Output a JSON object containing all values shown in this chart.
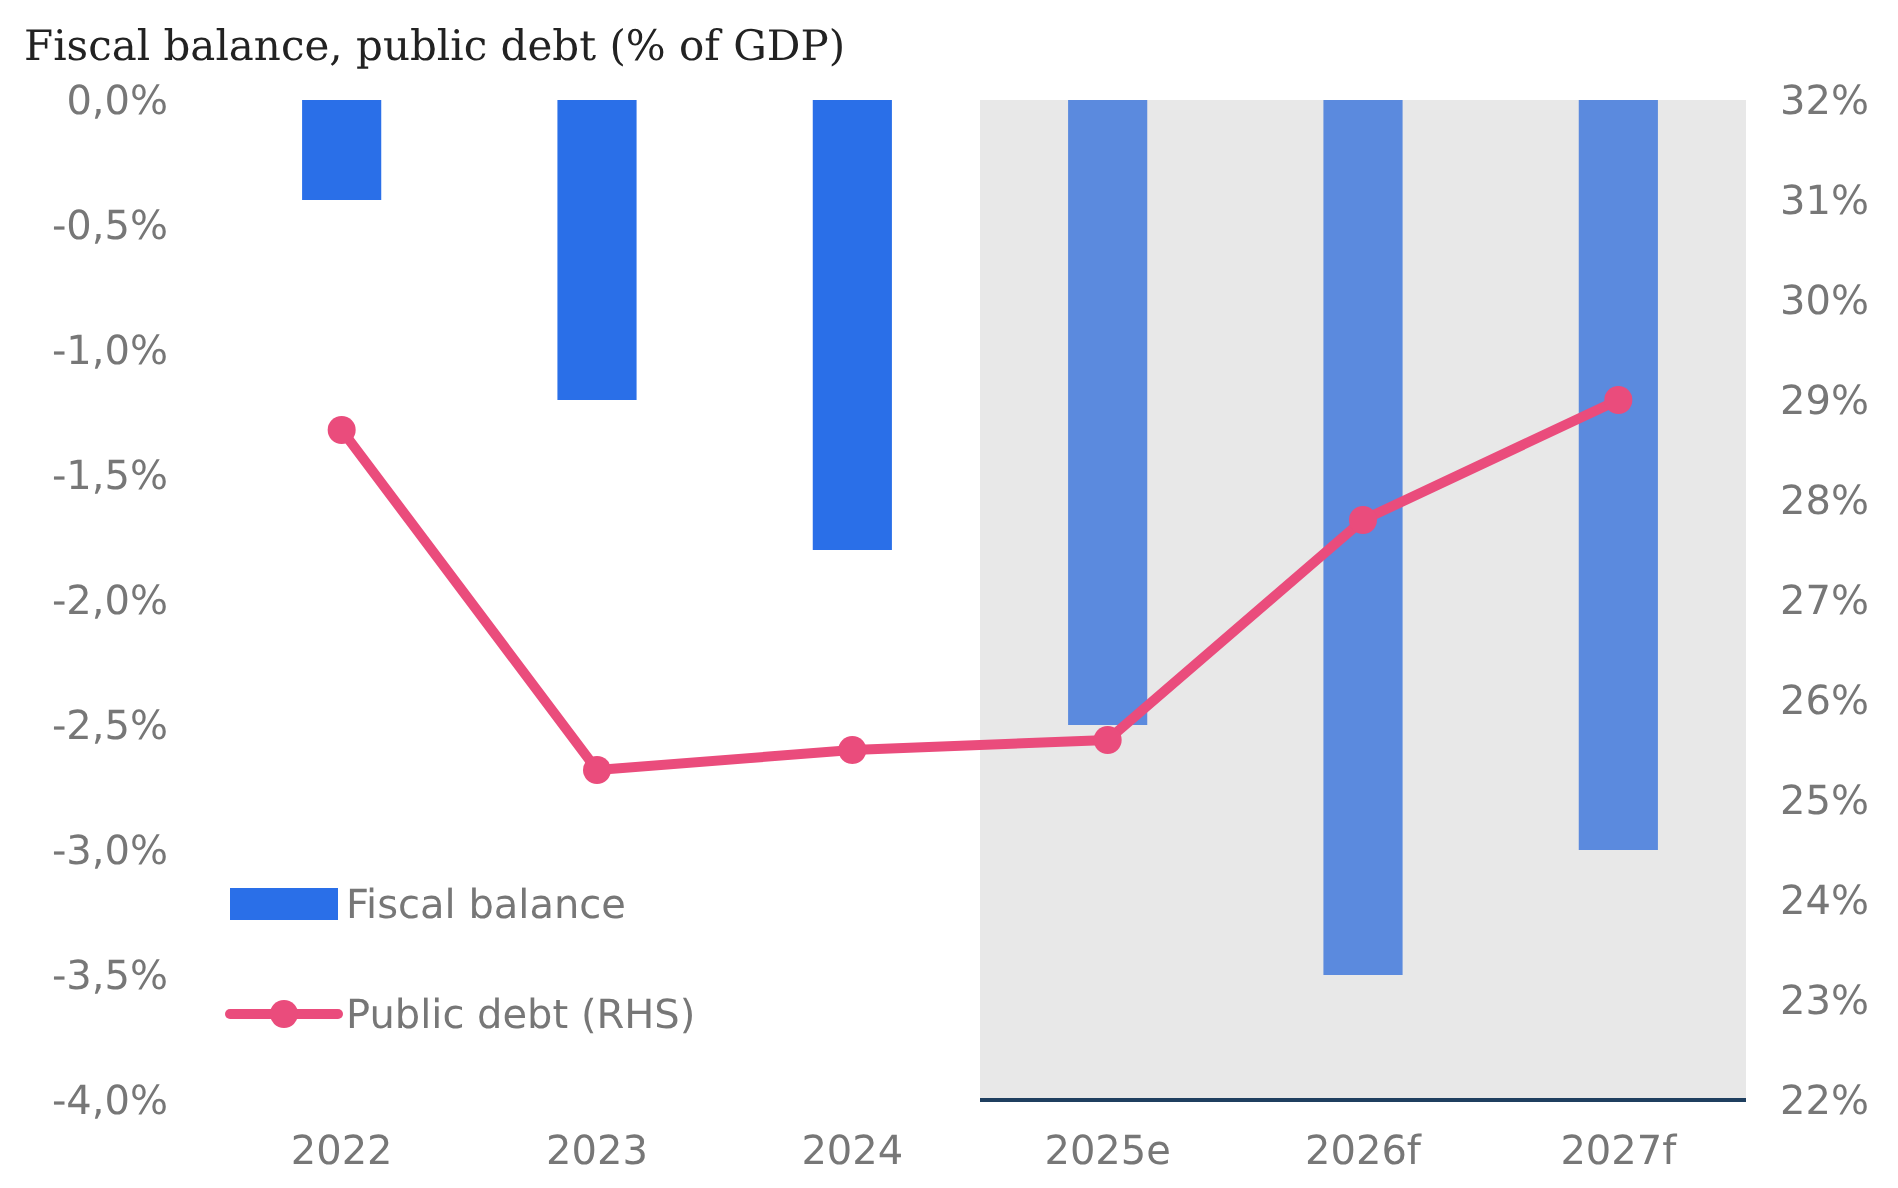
{
  "chart_data": {
    "type": "bar",
    "title": "Fiscal balance, public debt (% of GDP)",
    "categories": [
      "2022",
      "2023",
      "2024",
      "2025e",
      "2026f",
      "2027f"
    ],
    "series": [
      {
        "name": "Fiscal balance",
        "color": "#2a6fe8",
        "colors": [
          "#2a6fe8",
          "#2a6fe8",
          "#2a6fe8",
          "#5b8ade",
          "#5b8ade",
          "#5b8ade"
        ],
        "values": [
          -0.4,
          -1.2,
          -1.8,
          -2.5,
          -3.5,
          -3.0
        ]
      },
      {
        "name": "Public debt (RHS)",
        "type": "line",
        "axis": "y2",
        "color": "#ea4c7c",
        "values": [
          28.7,
          25.3,
          25.5,
          25.6,
          27.8,
          29.0
        ]
      }
    ],
    "ylim": [
      -4,
      0
    ],
    "yticks": [
      {
        "value": 0,
        "label": "0,0%"
      },
      {
        "value": -0.5,
        "label": "-0,5%"
      },
      {
        "value": -1,
        "label": "-1,0%"
      },
      {
        "value": -1.5,
        "label": "-1,5%"
      },
      {
        "value": -2,
        "label": "-2,0%"
      },
      {
        "value": -2.5,
        "label": "-2,5%"
      },
      {
        "value": -3,
        "label": "-3,0%"
      },
      {
        "value": -3.5,
        "label": "-3,5%"
      },
      {
        "value": -4,
        "label": "-4,0%"
      }
    ],
    "y2lim": [
      22,
      32
    ],
    "y2ticks": [
      {
        "value": 22,
        "label": "22%"
      },
      {
        "value": 23,
        "label": "23%"
      },
      {
        "value": 24,
        "label": "24%"
      },
      {
        "value": 25,
        "label": "25%"
      },
      {
        "value": 26,
        "label": "26%"
      },
      {
        "value": 27,
        "label": "27%"
      },
      {
        "value": 28,
        "label": "28%"
      },
      {
        "value": 29,
        "label": "29%"
      },
      {
        "value": 30,
        "label": "30%"
      },
      {
        "value": 31,
        "label": "31%"
      },
      {
        "value": 32,
        "label": "32%"
      }
    ],
    "bands": [
      {
        "axis": "x",
        "from": "2025e",
        "to": "2027f",
        "color": "#e8e8e8"
      }
    ],
    "marker": "circle",
    "line_style": "solid",
    "grid": false,
    "legend": "bottom left"
  }
}
